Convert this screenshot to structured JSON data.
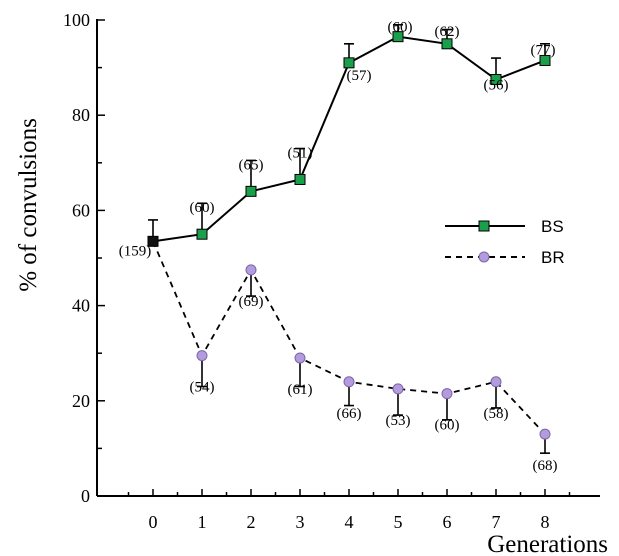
{
  "chart_data": {
    "type": "line",
    "title": "",
    "xlabel": "Generations",
    "ylabel": "% of convulsions",
    "x": [
      0,
      1,
      2,
      3,
      4,
      5,
      6,
      7,
      8
    ],
    "x_tick_labels": [
      "0",
      "1",
      "2",
      "3",
      "4",
      "5",
      "6",
      "7",
      "8"
    ],
    "xlim": [
      -1.2,
      9.4
    ],
    "ylim": [
      0,
      100
    ],
    "y_ticks": [
      0,
      20,
      40,
      60,
      80,
      100
    ],
    "y_tick_labels": [
      "0",
      "20",
      "40",
      "60",
      "80",
      "100"
    ],
    "grid": false,
    "legend_position": "right",
    "series": [
      {
        "name": "BS",
        "style": "solid",
        "marker": "square",
        "color": "#1aa04a",
        "values": [
          53.5,
          55,
          64,
          66.5,
          91,
          96.5,
          95,
          87.5,
          91.5
        ],
        "error_upper": [
          4.5,
          6.5,
          6.5,
          6.5,
          4,
          2.5,
          3,
          4.5,
          3.5
        ],
        "n_labels": [
          "(159)",
          "(60)",
          "(65)",
          "(51)",
          "(57)",
          "(60)",
          "(62)",
          "(56)",
          "(77)"
        ]
      },
      {
        "name": "BR",
        "style": "dashed",
        "marker": "circle",
        "color": "#b49bde",
        "values": [
          53.5,
          29.5,
          47.5,
          29,
          24,
          22.5,
          21.5,
          24,
          13
        ],
        "error_lower": [
          0,
          6.5,
          5.5,
          6,
          5,
          5.5,
          5.5,
          5.5,
          4
        ],
        "n_labels": [
          "",
          "(54)",
          "(69)",
          "(61)",
          "(66)",
          "(53)",
          "(60)",
          "(58)",
          "(68)"
        ]
      }
    ]
  }
}
